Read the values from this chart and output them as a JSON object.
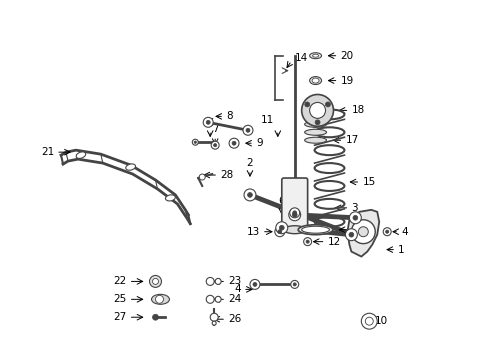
{
  "bg_color": "#ffffff",
  "line_color": "#000000",
  "part_color": "#444444",
  "label_color": "#000000",
  "figsize": [
    4.89,
    3.6
  ],
  "dpi": 100
}
